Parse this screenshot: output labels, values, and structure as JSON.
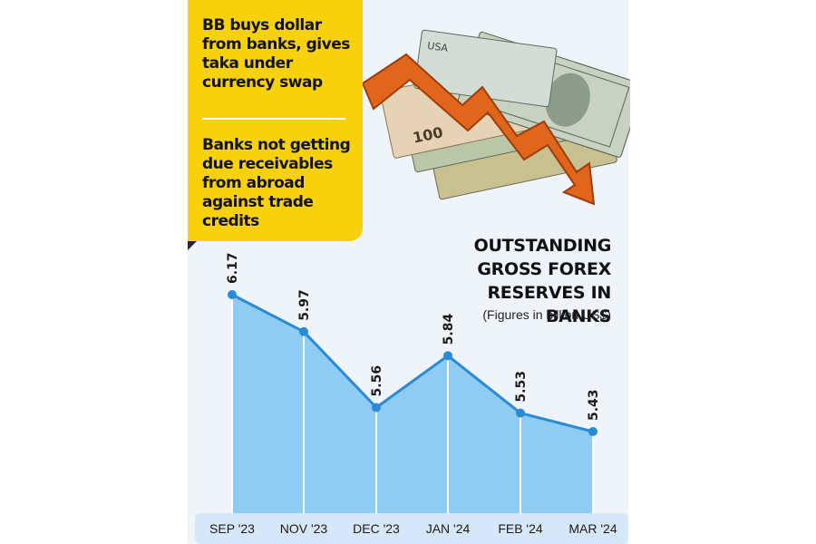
{
  "callout": {
    "points": [
      "BB buys dollar from banks, gives taka under currency swap",
      "Banks not getting due receivables from abroad against trade credits"
    ]
  },
  "chart_data": {
    "type": "area",
    "title": "OUTSTANDING GROSS FOREX RESERVES IN BANKS",
    "subtitle": "(Figures in billion US$)",
    "categories": [
      "SEP '23",
      "NOV '23",
      "DEC '23",
      "JAN '24",
      "FEB '24",
      "MAR '24"
    ],
    "values": [
      6.17,
      5.97,
      5.56,
      5.84,
      5.53,
      5.43
    ],
    "value_labels": [
      "6.17",
      "5.97",
      "5.56",
      "5.84",
      "5.53",
      "5.43"
    ],
    "grid": false,
    "colors": {
      "fill": "#8fccf3",
      "line": "#2a8ad4",
      "axis_band": "#d6e8f7"
    }
  },
  "illustration": {
    "icon": "money-bills-with-falling-arrow-icon"
  }
}
